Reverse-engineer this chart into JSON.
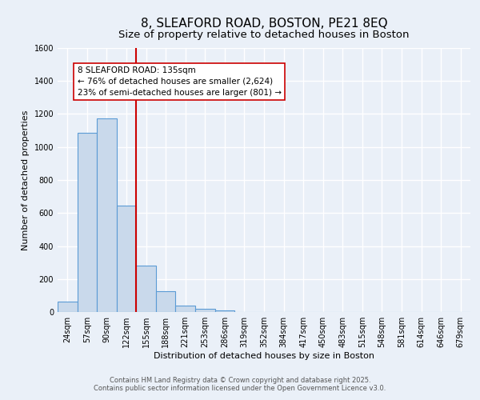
{
  "title": "8, SLEAFORD ROAD, BOSTON, PE21 8EQ",
  "subtitle": "Size of property relative to detached houses in Boston",
  "xlabel": "Distribution of detached houses by size in Boston",
  "ylabel": "Number of detached properties",
  "bar_labels": [
    "24sqm",
    "57sqm",
    "90sqm",
    "122sqm",
    "155sqm",
    "188sqm",
    "221sqm",
    "253sqm",
    "286sqm",
    "319sqm",
    "352sqm",
    "384sqm",
    "417sqm",
    "450sqm",
    "483sqm",
    "515sqm",
    "548sqm",
    "581sqm",
    "614sqm",
    "646sqm",
    "679sqm"
  ],
  "bar_values": [
    65,
    1085,
    1175,
    645,
    280,
    125,
    40,
    20,
    10,
    0,
    0,
    0,
    0,
    0,
    0,
    0,
    0,
    0,
    0,
    0,
    0
  ],
  "bar_color": "#c9d9eb",
  "bar_edge_color": "#5b9bd5",
  "background_color": "#eaf0f8",
  "grid_color": "#ffffff",
  "vline_color": "#cc0000",
  "annotation_text": "8 SLEAFORD ROAD: 135sqm\n← 76% of detached houses are smaller (2,624)\n23% of semi-detached houses are larger (801) →",
  "annotation_box_color": "#ffffff",
  "annotation_text_color": "#000000",
  "ylim": [
    0,
    1600
  ],
  "yticks": [
    0,
    200,
    400,
    600,
    800,
    1000,
    1200,
    1400,
    1600
  ],
  "footer1": "Contains HM Land Registry data © Crown copyright and database right 2025.",
  "footer2": "Contains public sector information licensed under the Open Government Licence v3.0.",
  "title_fontsize": 11,
  "subtitle_fontsize": 9.5,
  "axis_label_fontsize": 8,
  "tick_fontsize": 7,
  "annotation_fontsize": 7.5,
  "footer_fontsize": 6
}
